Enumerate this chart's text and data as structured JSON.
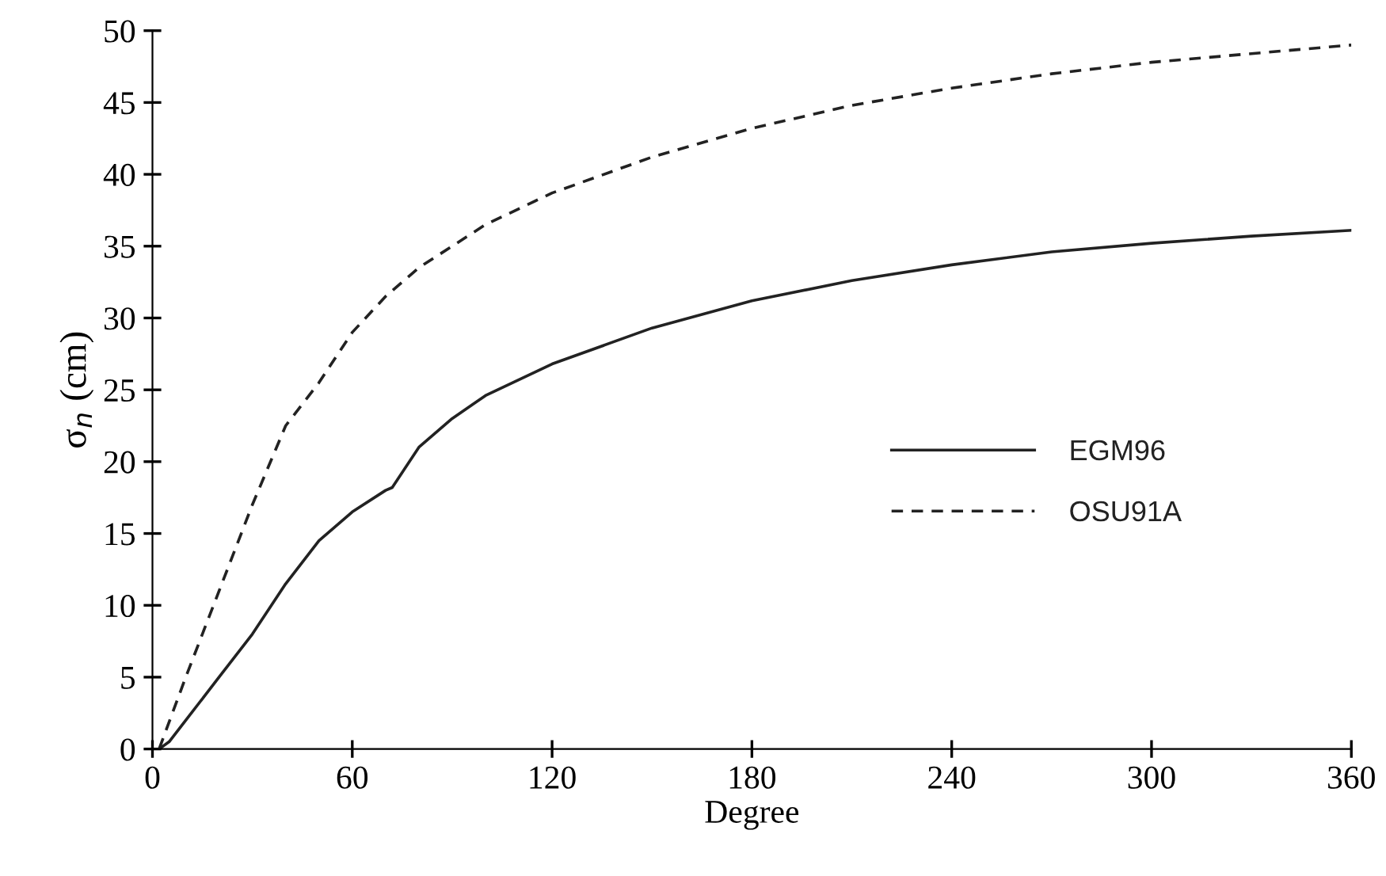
{
  "chart_data": {
    "type": "line",
    "xlabel": "Degree",
    "ylabel": "σ$_{n}$ (cm)",
    "xlim": [
      0,
      360
    ],
    "xticks": [
      0,
      60,
      120,
      180,
      240,
      300,
      360
    ],
    "ylim": [
      0,
      50
    ],
    "yticks": [
      0,
      5,
      10,
      15,
      20,
      25,
      30,
      35,
      40,
      45,
      50
    ],
    "grid": false,
    "legend": "right",
    "marker": "none",
    "series": [
      {
        "name": "EGM96",
        "color": "#222222",
        "line_style": "solid",
        "x": [
          2,
          5,
          10,
          20,
          30,
          40,
          50,
          60,
          70,
          72,
          80,
          90,
          100,
          120,
          150,
          180,
          210,
          240,
          270,
          300,
          330,
          360
        ],
        "values": [
          0,
          0.5,
          2,
          5,
          8,
          11.5,
          14.5,
          16.5,
          18,
          18.2,
          21,
          23,
          24.6,
          26.8,
          29.3,
          31.2,
          32.6,
          33.7,
          34.6,
          35.2,
          35.7,
          36.1
        ]
      },
      {
        "name": "OSU91A",
        "color": "#222222",
        "line_style": "dashed",
        "x": [
          2,
          10,
          20,
          30,
          40,
          50,
          60,
          70,
          80,
          90,
          100,
          120,
          150,
          180,
          210,
          240,
          270,
          300,
          330,
          360
        ],
        "values": [
          0,
          5,
          11,
          17,
          22.5,
          25.5,
          29,
          31.5,
          33.5,
          35,
          36.5,
          38.7,
          41.2,
          43.2,
          44.8,
          46,
          47,
          47.8,
          48.4,
          49
        ]
      }
    ]
  }
}
